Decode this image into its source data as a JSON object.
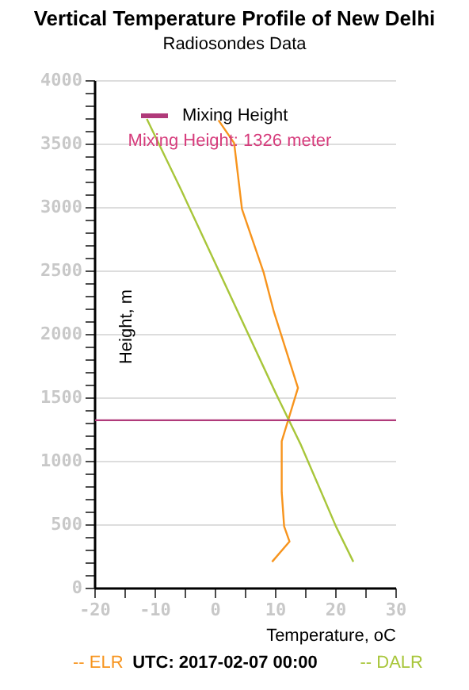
{
  "chart_data": {
    "type": "line",
    "title": "Vertical Temperature Profile of New Delhi",
    "subtitle": "Radiosondes Data",
    "xlabel": "Temperature, oC",
    "ylabel": "Height, m",
    "series": [
      {
        "name": "-- ELR",
        "color": "#f7941d",
        "x": [
          9.4,
          12.3,
          11.4,
          11.0,
          11.0,
          13.7,
          9.7,
          8.0,
          4.4,
          3.1,
          0.5
        ],
        "values": [
          210,
          370,
          490,
          760,
          1160,
          1580,
          2180,
          2490,
          2990,
          3510,
          3690
        ]
      },
      {
        "name": "-- DALR",
        "color": "#a8c63a",
        "x": [
          22.9,
          20.0,
          17.2,
          14.1,
          10.0,
          -5.7,
          -11.4
        ],
        "values": [
          210,
          490,
          800,
          1140,
          1540,
          3140,
          3700
        ]
      }
    ],
    "ref_lines": [
      {
        "axis": "y",
        "value": 1326,
        "label": "Mixing Height",
        "color": "#b03a7a"
      }
    ],
    "annotations": [
      "Mixing Height: 1326 meter",
      "UTC: 2017-02-07 00:00"
    ],
    "xlim": [
      -20,
      30
    ],
    "xticks": [
      -20,
      {
        "value": -15,
        "label": null
      },
      -10,
      {
        "value": -5,
        "label": null
      },
      0,
      {
        "value": 5,
        "label": null
      },
      10,
      {
        "value": 15,
        "label": null
      },
      20,
      {
        "value": 25,
        "label": null
      },
      30
    ],
    "ylim": [
      0,
      4000
    ],
    "yticks": [
      0,
      {
        "value": 100,
        "label": null
      },
      {
        "value": 200,
        "label": null
      },
      {
        "value": 300,
        "label": null
      },
      {
        "value": 400,
        "label": null
      },
      500,
      {
        "value": 600,
        "label": null
      },
      {
        "value": 700,
        "label": null
      },
      {
        "value": 800,
        "label": null
      },
      {
        "value": 900,
        "label": null
      },
      1000,
      {
        "value": 1100,
        "label": null
      },
      {
        "value": 1200,
        "label": null
      },
      {
        "value": 1300,
        "label": null
      },
      {
        "value": 1400,
        "label": null
      },
      1500,
      {
        "value": 1600,
        "label": null
      },
      {
        "value": 1700,
        "label": null
      },
      {
        "value": 1800,
        "label": null
      },
      {
        "value": 1900,
        "label": null
      },
      2000,
      {
        "value": 2100,
        "label": null
      },
      {
        "value": 2200,
        "label": null
      },
      {
        "value": 2300,
        "label": null
      },
      {
        "value": 2400,
        "label": null
      },
      2500,
      {
        "value": 2600,
        "label": null
      },
      {
        "value": 2700,
        "label": null
      },
      {
        "value": 2800,
        "label": null
      },
      {
        "value": 2900,
        "label": null
      },
      3000,
      {
        "value": 3100,
        "label": null
      },
      {
        "value": 3200,
        "label": null
      },
      {
        "value": 3300,
        "label": null
      },
      {
        "value": 3400,
        "label": null
      },
      3500,
      {
        "value": 3600,
        "label": null
      },
      {
        "value": 3700,
        "label": null
      },
      {
        "value": 3800,
        "label": null
      },
      {
        "value": 3900,
        "label": null
      },
      4000
    ],
    "grid": "y",
    "legend": "top left",
    "marker": "none",
    "line_style": "solid"
  }
}
